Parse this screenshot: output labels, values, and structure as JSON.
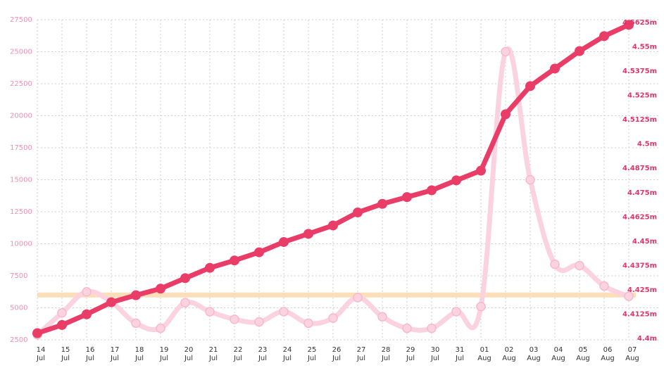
{
  "chart_data": {
    "type": "line",
    "categories": [
      [
        "14",
        "Jul"
      ],
      [
        "15",
        "Jul"
      ],
      [
        "16",
        "Jul"
      ],
      [
        "17",
        "Jul"
      ],
      [
        "18",
        "Jul"
      ],
      [
        "19",
        "Jul"
      ],
      [
        "20",
        "Jul"
      ],
      [
        "21",
        "Jul"
      ],
      [
        "22",
        "Jul"
      ],
      [
        "23",
        "Jul"
      ],
      [
        "24",
        "Jul"
      ],
      [
        "25",
        "Jul"
      ],
      [
        "26",
        "Jul"
      ],
      [
        "27",
        "Jul"
      ],
      [
        "28",
        "Jul"
      ],
      [
        "29",
        "Jul"
      ],
      [
        "30",
        "Jul"
      ],
      [
        "31",
        "Jul"
      ],
      [
        "01",
        "Aug"
      ],
      [
        "02",
        "Aug"
      ],
      [
        "03",
        "Aug"
      ],
      [
        "04",
        "Aug"
      ],
      [
        "05",
        "Aug"
      ],
      [
        "06",
        "Aug"
      ],
      [
        "07",
        "Aug"
      ]
    ],
    "left_axis": {
      "ticks": [
        "27500",
        "25000",
        "22500",
        "20000",
        "17500",
        "15000",
        "12500",
        "10000",
        "7500",
        "5000",
        "2500"
      ],
      "tick_values": [
        27500,
        25000,
        22500,
        20000,
        17500,
        15000,
        12500,
        10000,
        7500,
        5000,
        2500
      ],
      "range": [
        2500,
        27500
      ]
    },
    "right_axis": {
      "ticks": [
        "4.5625m",
        "4.55m",
        "4.5375m",
        "4.525m",
        "4.5125m",
        "4.5m",
        "4.4875m",
        "4.475m",
        "4.4625m",
        "4.45m",
        "4.4375m",
        "4.425m",
        "4.4125m",
        "4.4m"
      ],
      "tick_values": [
        4.5625,
        4.55,
        4.5375,
        4.525,
        4.5125,
        4.5,
        4.4875,
        4.475,
        4.4625,
        4.45,
        4.4375,
        4.425,
        4.4125,
        4.4
      ],
      "range": [
        4.4,
        4.5625
      ],
      "unit": "m"
    },
    "series": [
      {
        "axis": "left",
        "color": "#fbd3e0",
        "smooth": true,
        "values": [
          2900,
          4600,
          6250,
          5450,
          3800,
          3400,
          5400,
          4700,
          4100,
          3900,
          4700,
          3800,
          4200,
          5800,
          4300,
          3400,
          3400,
          4700,
          5100,
          25000,
          15000,
          8400,
          8300,
          6700,
          5900
        ]
      },
      {
        "axis": "right",
        "color": "#e93d68",
        "smooth": false,
        "values": [
          4.4027,
          4.4069,
          4.4124,
          4.4186,
          4.4222,
          4.4256,
          4.431,
          4.4363,
          4.4401,
          4.4443,
          4.4496,
          4.4538,
          4.4581,
          4.4648,
          4.4692,
          4.4727,
          4.4762,
          4.4813,
          4.4863,
          4.5153,
          4.5298,
          4.5388,
          4.5478,
          4.5555,
          4.5613
        ]
      }
    ],
    "threshold_band": {
      "axis": "left",
      "value": 6000,
      "color": "#fcdcb0"
    },
    "grid": true,
    "legend": "none"
  }
}
